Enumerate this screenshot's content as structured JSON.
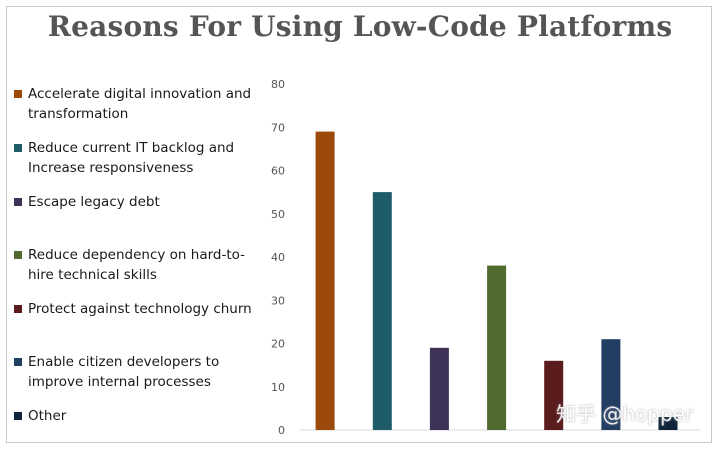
{
  "chart_data": {
    "type": "bar",
    "title": "Reasons For Using Low-Code Platforms",
    "categories": [
      "Accelerate digital innovation and transformation",
      "Reduce current IT backlog and Increase responsiveness",
      "Escape legacy debt",
      "Reduce dependency on hard-to-hire technical skills",
      "Protect against technology churn",
      "Enable citizen developers to improve internal processes",
      "Other"
    ],
    "values": [
      69,
      55,
      19,
      38,
      16,
      21,
      3
    ],
    "colors": [
      "#9c4a0c",
      "#1f5c6a",
      "#3e3356",
      "#4f6b2d",
      "#5b1c1e",
      "#233e63",
      "#0f243b"
    ],
    "ylim": [
      0,
      80
    ],
    "yticks": [
      0,
      10,
      20,
      30,
      40,
      50,
      60,
      70,
      80
    ],
    "xlabel": "",
    "ylabel": "",
    "legend_position": "left",
    "grid": false
  },
  "watermark": "知乎 @hopper"
}
